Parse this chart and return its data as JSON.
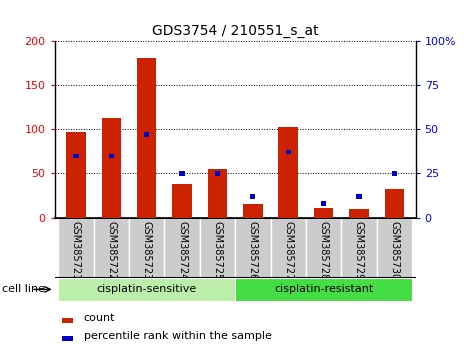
{
  "title": "GDS3754 / 210551_s_at",
  "samples": [
    "GSM385721",
    "GSM385722",
    "GSM385723",
    "GSM385724",
    "GSM385725",
    "GSM385726",
    "GSM385727",
    "GSM385728",
    "GSM385729",
    "GSM385730"
  ],
  "count_values": [
    97,
    113,
    180,
    38,
    55,
    15,
    103,
    11,
    10,
    33
  ],
  "percentile_values": [
    35,
    35,
    47,
    25,
    25,
    12,
    37,
    8,
    12,
    25
  ],
  "left_ylim": [
    0,
    200
  ],
  "right_ylim": [
    0,
    100
  ],
  "left_yticks": [
    0,
    50,
    100,
    150,
    200
  ],
  "right_yticks": [
    0,
    25,
    50,
    75,
    100
  ],
  "right_yticklabels": [
    "0",
    "25",
    "50",
    "75",
    "100%"
  ],
  "bar_color": "#cc2200",
  "percentile_color": "#0000cc",
  "grid_color": "#000000",
  "groups": [
    {
      "label": "cisplatin-sensitive",
      "start": 0,
      "end": 5,
      "color": "#bbeeaa"
    },
    {
      "label": "cisplatin-resistant",
      "start": 5,
      "end": 10,
      "color": "#44dd44"
    }
  ],
  "group_label": "cell line",
  "legend_count": "count",
  "legend_percentile": "percentile rank within the sample",
  "tick_bg_color": "#cccccc",
  "tick_edge_color": "#ffffff",
  "plot_bg_color": "#ffffff",
  "figure_bg_color": "#ffffff",
  "spine_color": "#000000",
  "title_fontsize": 10,
  "axis_fontsize": 8,
  "label_fontsize": 8
}
